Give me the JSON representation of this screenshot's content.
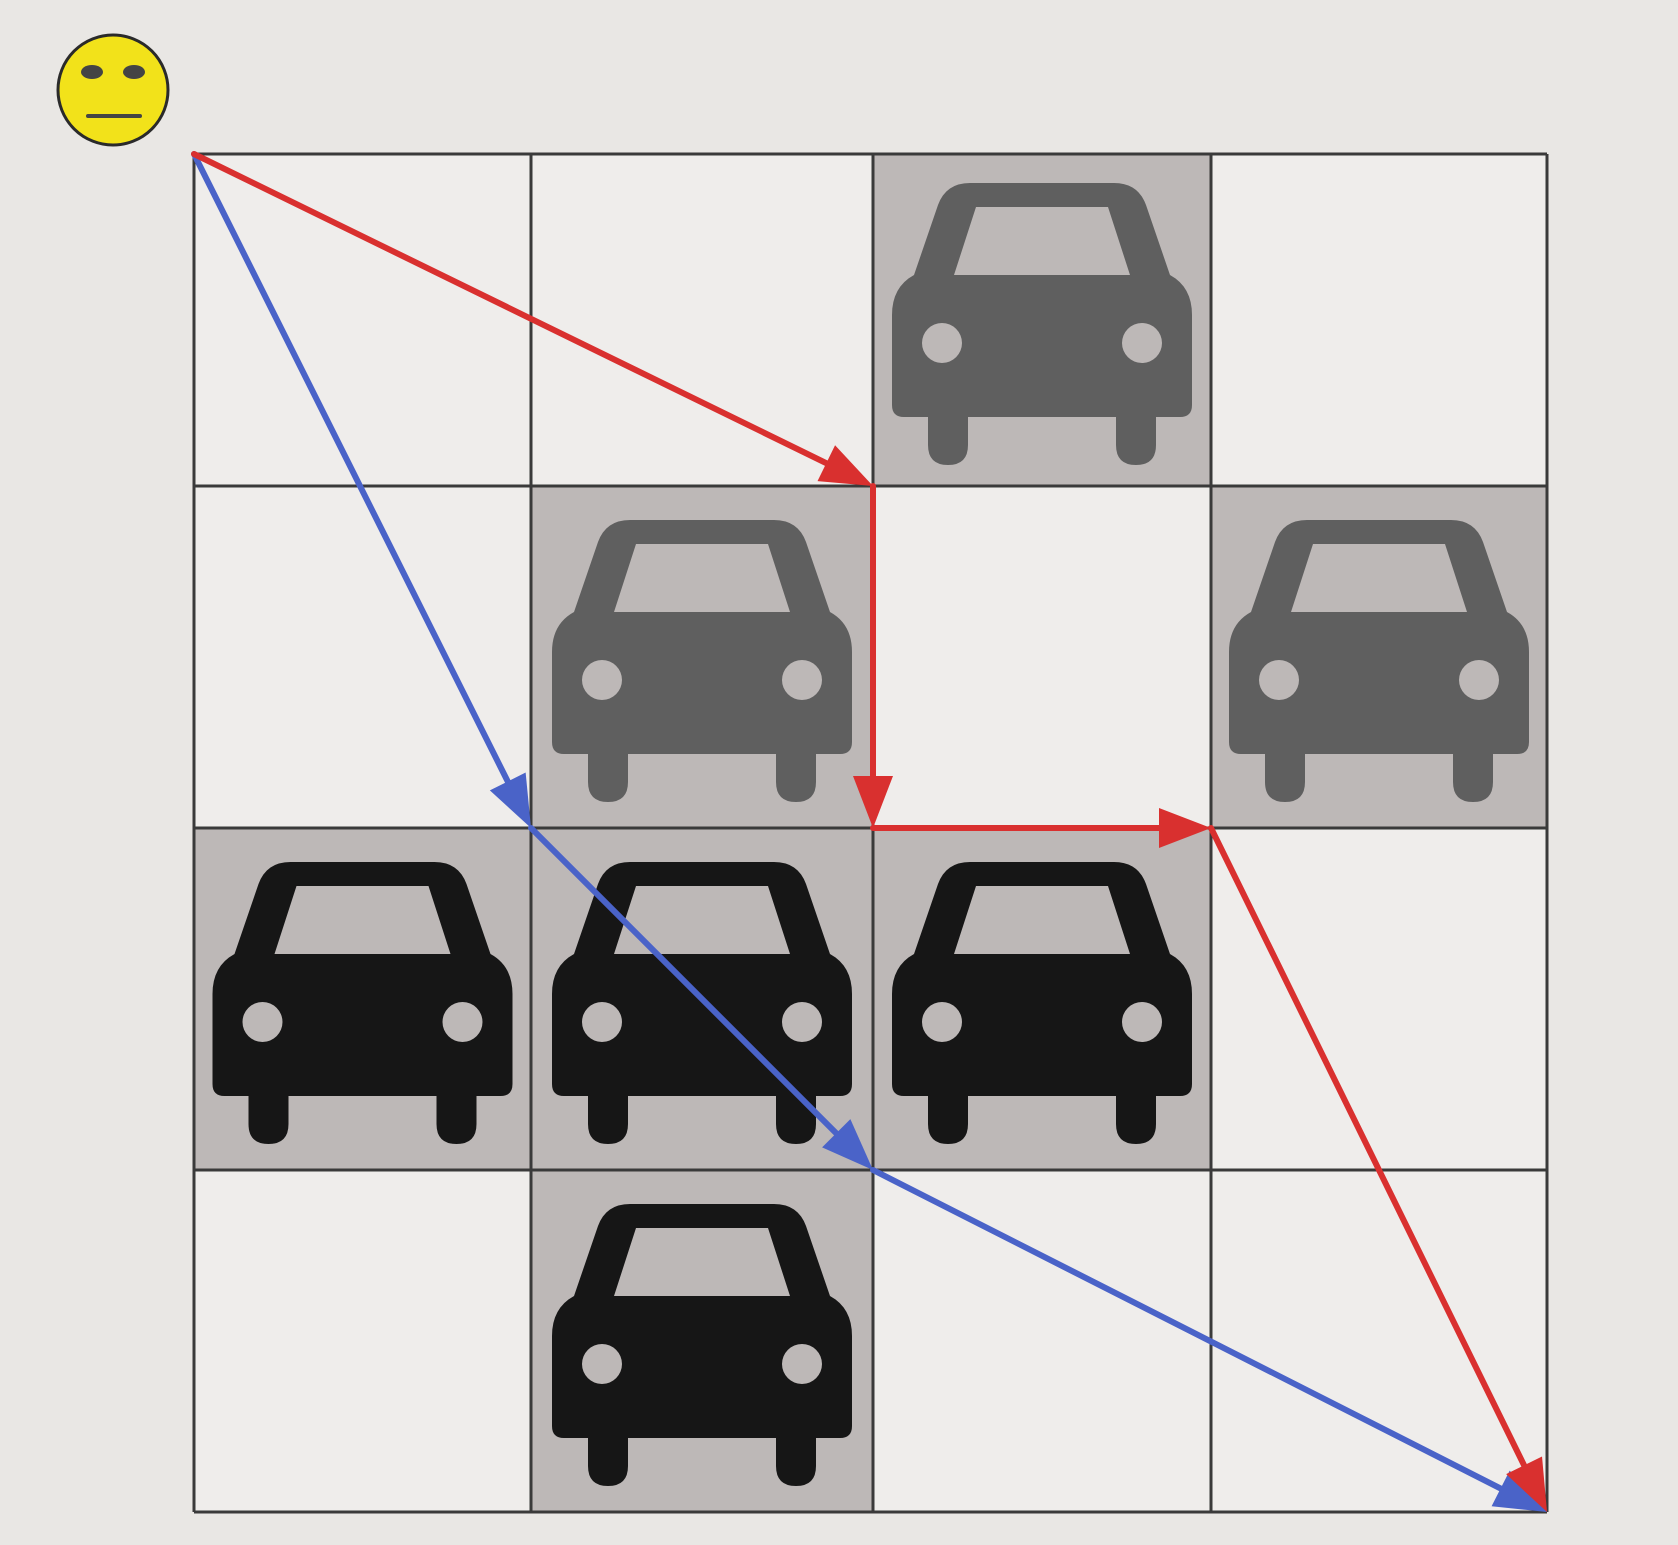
{
  "grid": {
    "rows": 4,
    "cols": 4,
    "occupied_cells": [
      {
        "row": 0,
        "col": 2,
        "shade": "gray"
      },
      {
        "row": 1,
        "col": 1,
        "shade": "gray"
      },
      {
        "row": 1,
        "col": 3,
        "shade": "gray"
      },
      {
        "row": 2,
        "col": 0,
        "shade": "black"
      },
      {
        "row": 2,
        "col": 1,
        "shade": "black"
      },
      {
        "row": 2,
        "col": 2,
        "shade": "black"
      },
      {
        "row": 3,
        "col": 1,
        "shade": "black"
      }
    ]
  },
  "agent": {
    "icon": "neutral-face-icon",
    "start_corner": [
      0,
      0
    ]
  },
  "paths": [
    {
      "id": "blue",
      "color": "#4a63c8",
      "corners": [
        [
          0,
          0
        ],
        [
          1,
          2
        ],
        [
          2,
          3
        ],
        [
          4,
          4
        ]
      ]
    },
    {
      "id": "red",
      "color": "#d9302f",
      "corners": [
        [
          0,
          0
        ],
        [
          2,
          1
        ],
        [
          2,
          2
        ],
        [
          3,
          2
        ],
        [
          4,
          4
        ]
      ]
    }
  ],
  "colors": {
    "background": "#e9e7e4",
    "cell_empty": "#efedeb",
    "cell_occupied": "#bdb8b7",
    "grid_line": "#3a3a3a",
    "car_gray": "#5f5f5f",
    "car_black": "#161616",
    "face": "#f2e21a"
  }
}
